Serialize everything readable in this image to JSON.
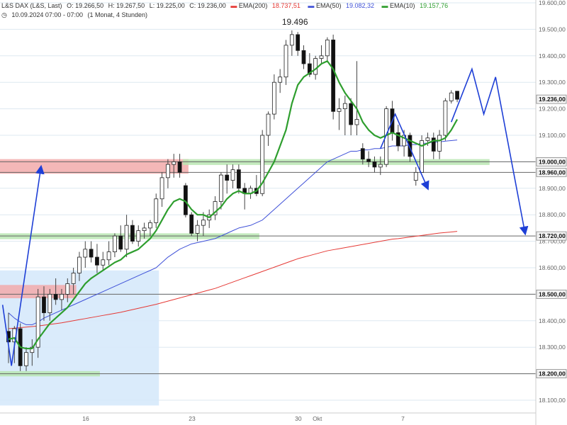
{
  "header": {
    "title": "L&S DAX (L&S, Last)",
    "ohlc": {
      "open": "O: 19.266,50",
      "high": "H: 19.267,50",
      "low": "L: 19.225,00",
      "close": "C: 19.236,00"
    },
    "ema200": {
      "label": "EMA(200)",
      "value": "18.737,51",
      "color": "#e53935"
    },
    "ema50": {
      "label": "EMA(50)",
      "value": "19.082,32",
      "color": "#3f51d8"
    },
    "ema10": {
      "label": "EMA(10)",
      "value": "19.157,76",
      "color": "#2e9e2e"
    },
    "timestamp": "10.09.2024 07:00 - 07:00",
    "range": "(1 Monat, 4 Stunden)"
  },
  "chart_data": {
    "type": "candlestick",
    "price_axis": {
      "min": 18100,
      "max": 19600,
      "step": 100,
      "ticks": [
        "19.600,00",
        "19.500,00",
        "19.400,00",
        "19.300,00",
        "19.200,00",
        "19.100,00",
        "19.000,00",
        "18.900,00",
        "18.800,00",
        "18.700,00",
        "18.600,00",
        "18.500,00",
        "18.400,00",
        "18.300,00",
        "18.200,00",
        "18.100,00"
      ],
      "highlighted": [
        {
          "value": 19236,
          "label": "19.236,00"
        },
        {
          "value": 19000,
          "label": "19.000,00"
        },
        {
          "value": 18960,
          "label": "18.960,00"
        },
        {
          "value": 18720,
          "label": "18.720,00"
        },
        {
          "value": 18500,
          "label": "18.500,00"
        },
        {
          "value": 18200,
          "label": "18.200,00"
        }
      ]
    },
    "x_labels": [
      {
        "label": "16",
        "index": 13
      },
      {
        "label": "23",
        "index": 31
      },
      {
        "label": "30",
        "index": 49
      },
      {
        "label": "Okt",
        "index": 52
      },
      {
        "label": "7",
        "index": 67
      }
    ],
    "peak_label": {
      "text": "19.496",
      "value": 19496,
      "index": 48
    },
    "candles": [
      {
        "o": 18360,
        "h": 18430,
        "l": 18240,
        "c": 18320
      },
      {
        "o": 18320,
        "h": 18380,
        "l": 18240,
        "c": 18370
      },
      {
        "o": 18370,
        "h": 18390,
        "l": 18210,
        "c": 18230
      },
      {
        "o": 18230,
        "h": 18300,
        "l": 18210,
        "c": 18280
      },
      {
        "o": 18280,
        "h": 18330,
        "l": 18230,
        "c": 18300
      },
      {
        "o": 18300,
        "h": 18520,
        "l": 18260,
        "c": 18490
      },
      {
        "o": 18490,
        "h": 18530,
        "l": 18400,
        "c": 18430
      },
      {
        "o": 18430,
        "h": 18520,
        "l": 18400,
        "c": 18500
      },
      {
        "o": 18500,
        "h": 18560,
        "l": 18460,
        "c": 18480
      },
      {
        "o": 18480,
        "h": 18520,
        "l": 18440,
        "c": 18500
      },
      {
        "o": 18500,
        "h": 18560,
        "l": 18470,
        "c": 18540
      },
      {
        "o": 18540,
        "h": 18600,
        "l": 18500,
        "c": 18580
      },
      {
        "o": 18580,
        "h": 18660,
        "l": 18550,
        "c": 18640
      },
      {
        "o": 18640,
        "h": 18700,
        "l": 18600,
        "c": 18670
      },
      {
        "o": 18670,
        "h": 18700,
        "l": 18620,
        "c": 18640
      },
      {
        "o": 18640,
        "h": 18690,
        "l": 18580,
        "c": 18610
      },
      {
        "o": 18610,
        "h": 18660,
        "l": 18590,
        "c": 18630
      },
      {
        "o": 18630,
        "h": 18700,
        "l": 18610,
        "c": 18660
      },
      {
        "o": 18660,
        "h": 18730,
        "l": 18640,
        "c": 18720
      },
      {
        "o": 18720,
        "h": 18760,
        "l": 18660,
        "c": 18670
      },
      {
        "o": 18670,
        "h": 18800,
        "l": 18640,
        "c": 18760
      },
      {
        "o": 18760,
        "h": 18780,
        "l": 18690,
        "c": 18700
      },
      {
        "o": 18700,
        "h": 18760,
        "l": 18680,
        "c": 18740
      },
      {
        "o": 18740,
        "h": 18770,
        "l": 18710,
        "c": 18750
      },
      {
        "o": 18750,
        "h": 18780,
        "l": 18720,
        "c": 18770
      },
      {
        "o": 18770,
        "h": 18880,
        "l": 18750,
        "c": 18860
      },
      {
        "o": 18860,
        "h": 18960,
        "l": 18830,
        "c": 18940
      },
      {
        "o": 18940,
        "h": 19010,
        "l": 18900,
        "c": 18990
      },
      {
        "o": 18990,
        "h": 19030,
        "l": 18940,
        "c": 19000
      },
      {
        "o": 19000,
        "h": 19030,
        "l": 18940,
        "c": 18960
      },
      {
        "o": 18910,
        "h": 18920,
        "l": 18790,
        "c": 18800
      },
      {
        "o": 18800,
        "h": 18810,
        "l": 18720,
        "c": 18730
      },
      {
        "o": 18730,
        "h": 18780,
        "l": 18700,
        "c": 18760
      },
      {
        "o": 18760,
        "h": 18810,
        "l": 18720,
        "c": 18780
      },
      {
        "o": 18780,
        "h": 18820,
        "l": 18750,
        "c": 18800
      },
      {
        "o": 18800,
        "h": 18870,
        "l": 18780,
        "c": 18850
      },
      {
        "o": 18850,
        "h": 18960,
        "l": 18820,
        "c": 18950
      },
      {
        "o": 18950,
        "h": 18990,
        "l": 18880,
        "c": 18930
      },
      {
        "o": 18930,
        "h": 18990,
        "l": 18900,
        "c": 18970
      },
      {
        "o": 18970,
        "h": 18990,
        "l": 18880,
        "c": 18900
      },
      {
        "o": 18900,
        "h": 18920,
        "l": 18820,
        "c": 18880
      },
      {
        "o": 18880,
        "h": 18910,
        "l": 18860,
        "c": 18900
      },
      {
        "o": 18900,
        "h": 18950,
        "l": 18870,
        "c": 18880
      },
      {
        "o": 18880,
        "h": 19120,
        "l": 18870,
        "c": 19100
      },
      {
        "o": 19100,
        "h": 19190,
        "l": 19060,
        "c": 19180
      },
      {
        "o": 19180,
        "h": 19330,
        "l": 19160,
        "c": 19300
      },
      {
        "o": 19300,
        "h": 19350,
        "l": 19260,
        "c": 19320
      },
      {
        "o": 19320,
        "h": 19460,
        "l": 19290,
        "c": 19440
      },
      {
        "o": 19440,
        "h": 19496,
        "l": 19400,
        "c": 19480
      },
      {
        "o": 19480,
        "h": 19490,
        "l": 19400,
        "c": 19420
      },
      {
        "o": 19420,
        "h": 19440,
        "l": 19350,
        "c": 19370
      },
      {
        "o": 19370,
        "h": 19410,
        "l": 19320,
        "c": 19330
      },
      {
        "o": 19330,
        "h": 19400,
        "l": 19310,
        "c": 19390
      },
      {
        "o": 19390,
        "h": 19440,
        "l": 19370,
        "c": 19400
      },
      {
        "o": 19400,
        "h": 19470,
        "l": 19380,
        "c": 19460
      },
      {
        "o": 19460,
        "h": 19480,
        "l": 19160,
        "c": 19190
      },
      {
        "o": 19190,
        "h": 19240,
        "l": 19120,
        "c": 19200
      },
      {
        "o": 19200,
        "h": 19250,
        "l": 19100,
        "c": 19220
      },
      {
        "o": 19220,
        "h": 19240,
        "l": 19100,
        "c": 19140
      },
      {
        "o": 19140,
        "h": 19380,
        "l": 19100,
        "c": 19160
      },
      {
        "o": 19050,
        "h": 19070,
        "l": 18990,
        "c": 19010
      },
      {
        "o": 19010,
        "h": 19040,
        "l": 18980,
        "c": 19000
      },
      {
        "o": 19000,
        "h": 19020,
        "l": 18960,
        "c": 18980
      },
      {
        "o": 18980,
        "h": 19020,
        "l": 18950,
        "c": 18990
      },
      {
        "o": 18990,
        "h": 19210,
        "l": 18980,
        "c": 19200
      },
      {
        "o": 19200,
        "h": 19230,
        "l": 19080,
        "c": 19110
      },
      {
        "o": 19110,
        "h": 19140,
        "l": 19040,
        "c": 19060
      },
      {
        "o": 19060,
        "h": 19120,
        "l": 19020,
        "c": 19100
      },
      {
        "o": 19100,
        "h": 19110,
        "l": 19000,
        "c": 19020
      },
      {
        "o": 18930,
        "h": 18980,
        "l": 18910,
        "c": 18960
      },
      {
        "o": 18960,
        "h": 19100,
        "l": 18960,
        "c": 19080
      },
      {
        "o": 19080,
        "h": 19110,
        "l": 19060,
        "c": 19090
      },
      {
        "o": 19090,
        "h": 19110,
        "l": 19010,
        "c": 19040
      },
      {
        "o": 19040,
        "h": 19120,
        "l": 19010,
        "c": 19100
      },
      {
        "o": 19100,
        "h": 19240,
        "l": 19080,
        "c": 19230
      },
      {
        "o": 19230,
        "h": 19270,
        "l": 19220,
        "c": 19260
      },
      {
        "o": 19266.5,
        "h": 19267.5,
        "l": 19225,
        "c": 19236
      }
    ],
    "ema10": [
      18330,
      18335,
      18300,
      18295,
      18295,
      18330,
      18360,
      18390,
      18410,
      18430,
      18450,
      18480,
      18510,
      18540,
      18560,
      18575,
      18590,
      18605,
      18620,
      18630,
      18650,
      18660,
      18670,
      18690,
      18710,
      18740,
      18780,
      18820,
      18850,
      18860,
      18850,
      18820,
      18800,
      18800,
      18790,
      18810,
      18830,
      18860,
      18880,
      18890,
      18880,
      18880,
      18890,
      18920,
      18960,
      19000,
      19060,
      19120,
      19220,
      19290,
      19320,
      19335,
      19350,
      19370,
      19380,
      19350,
      19300,
      19260,
      19230,
      19200,
      19150,
      19120,
      19100,
      19090,
      19100,
      19110,
      19100,
      19090,
      19080,
      19070,
      19060,
      19070,
      19080,
      19080,
      19090,
      19120,
      19160
    ],
    "ema50": [
      18430,
      18410,
      18395,
      18385,
      18385,
      18395,
      18410,
      18420,
      18430,
      18440,
      18450,
      18460,
      18470,
      18480,
      18490,
      18500,
      18510,
      18520,
      18530,
      18540,
      18550,
      18560,
      18570,
      18580,
      18590,
      18600,
      18620,
      18640,
      18655,
      18670,
      18680,
      18690,
      18695,
      18700,
      18705,
      18710,
      18720,
      18730,
      18740,
      18750,
      18755,
      18760,
      18770,
      18780,
      18800,
      18820,
      18840,
      18860,
      18880,
      18900,
      18920,
      18940,
      18960,
      18980,
      19000,
      19010,
      19020,
      19030,
      19040,
      19040,
      19045,
      19045,
      19050,
      19050,
      19055,
      19060,
      19060,
      19060,
      19065,
      19065,
      19070,
      19070,
      19075,
      19075,
      19078,
      19080,
      19082.32
    ],
    "ema200": [
      18370,
      18372,
      18374,
      18376,
      18378,
      18380,
      18383,
      18386,
      18389,
      18392,
      18396,
      18400,
      18404,
      18408,
      18412,
      18416,
      18420,
      18424,
      18428,
      18432,
      18437,
      18442,
      18447,
      18452,
      18457,
      18462,
      18468,
      18474,
      18480,
      18486,
      18492,
      18498,
      18504,
      18510,
      18516,
      18522,
      18530,
      18538,
      18546,
      18554,
      18562,
      18570,
      18578,
      18586,
      18594,
      18602,
      18610,
      18618,
      18626,
      18634,
      18640,
      18646,
      18652,
      18658,
      18664,
      18668,
      18672,
      18676,
      18680,
      18684,
      18688,
      18692,
      18696,
      18700,
      18704,
      18708,
      18710,
      18713,
      18716,
      18719,
      18722,
      18725,
      18728,
      18731,
      18733,
      18735,
      18737.51
    ],
    "colors": {
      "bull": "#ffffff",
      "bear": "#111111",
      "wick": "#444444",
      "ema10": "#2e9e2e",
      "ema50": "#3f51d8",
      "ema200": "#e53935",
      "projection": "#1e3fd6",
      "zone_red": "#f2aaaa",
      "zone_green": "#b8e6b2",
      "zone_blue": "#d6e9fb",
      "hline": "#666666",
      "grid": "#dde8f0"
    },
    "zones": [
      {
        "kind": "red",
        "from_index": -1,
        "to_index": 30,
        "low": 18955,
        "high": 19010
      },
      {
        "kind": "green",
        "from_index": 30,
        "to_index": 81,
        "low": 18988,
        "high": 19010
      },
      {
        "kind": "green",
        "from_index": -1,
        "to_index": 42,
        "low": 18708,
        "high": 18730
      },
      {
        "kind": "red",
        "from_index": -1,
        "to_index": 11,
        "low": 18485,
        "high": 18535
      },
      {
        "kind": "green",
        "from_index": -1,
        "to_index": 15,
        "low": 18190,
        "high": 18210
      },
      {
        "kind": "blue",
        "from_index": -1,
        "to_index": 25,
        "low": 18080,
        "high": 18590
      }
    ],
    "horizontal_lines": [
      19000,
      18960,
      18720,
      18500,
      18200
    ],
    "projections": [
      {
        "points": [
          [
            -1,
            18460
          ],
          [
            0.5,
            18230
          ],
          [
            5.5,
            18980
          ]
        ],
        "arrow": true
      },
      {
        "points": [
          [
            63,
            19050
          ],
          [
            65.5,
            19180
          ],
          [
            71,
            18900
          ]
        ],
        "arrow": true
      },
      {
        "points": [
          [
            75,
            19150
          ],
          [
            78.5,
            19350
          ],
          [
            80.5,
            19180
          ],
          [
            82.5,
            19320
          ],
          [
            87.5,
            18730
          ]
        ],
        "arrow": true
      }
    ]
  }
}
